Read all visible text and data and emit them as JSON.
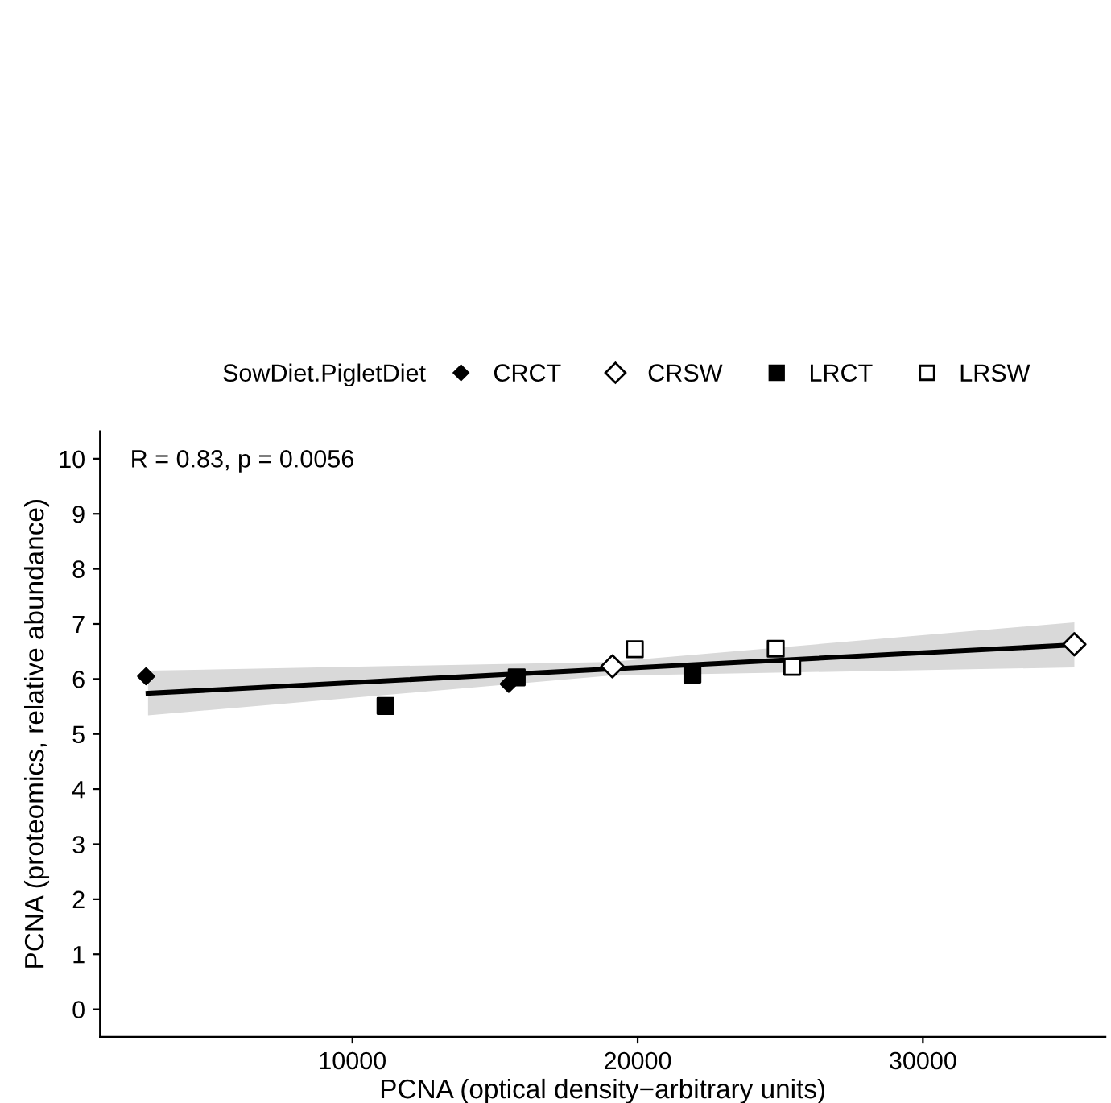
{
  "chart_data": {
    "type": "scatter",
    "xlabel": "PCNA (optical density−arbitrary units)",
    "ylabel": "PCNA (proteomics, relative abundance)",
    "legend_title": "SowDiet.PigletDiet",
    "legend": "top",
    "grid": false,
    "xlim": [
      1150,
      36400
    ],
    "xticks": [
      10000,
      20000,
      30000
    ],
    "ylim": [
      -0.5,
      10.5
    ],
    "yticks": [
      0,
      1,
      2,
      3,
      4,
      5,
      6,
      7,
      8,
      9,
      10
    ],
    "annotations": [
      "R = 0.83, p = 0.0056"
    ],
    "series": [
      {
        "name": "CRCT",
        "color": "#000000",
        "marker": "diamond",
        "x": [
          2766,
          15480
        ],
        "values": [
          6.05,
          5.91
        ]
      },
      {
        "name": "CRSW",
        "color": "#000000",
        "marker": "diamond",
        "x": [
          19115,
          35310
        ],
        "values": [
          6.23,
          6.63
        ]
      },
      {
        "name": "LRCT",
        "color": "#000000",
        "marker": "square",
        "x": [
          11160,
          15760,
          21920
        ],
        "values": [
          5.51,
          6.03,
          6.08
        ]
      },
      {
        "name": "LRSW",
        "color": "#000000",
        "marker": "square",
        "x": [
          19900,
          24840,
          25420
        ],
        "values": [
          6.54,
          6.55,
          6.22
        ]
      },
      {
        "type": "line",
        "color": "#000000",
        "marker": "none",
        "x": [
          2834,
          19000,
          35310
        ],
        "values": [
          5.74,
          6.18,
          6.62
        ],
        "lower": [
          5.34,
          6.06,
          6.21
        ],
        "upper": [
          6.15,
          6.31,
          7.03
        ]
      }
    ]
  }
}
